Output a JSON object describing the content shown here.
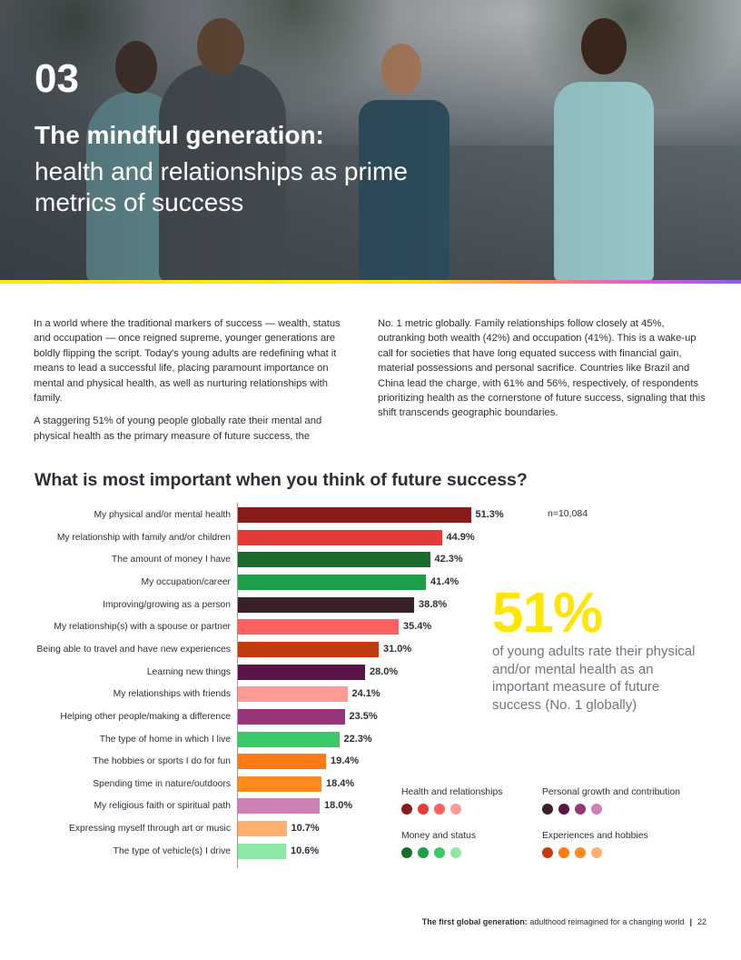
{
  "header": {
    "number": "03",
    "title": "The mindful generation:",
    "subtitle": "health and relationships as prime metrics of success"
  },
  "body": {
    "left_paragraphs": [
      "In a world where the traditional markers of success — wealth, status and occupation — once reigned supreme, younger generations are boldly flipping the script. Today's young adults are redefining what it means to lead a successful life, placing paramount importance on mental and physical health, as well as nurturing relationships with family.",
      "A staggering 51% of young people globally rate their mental and physical health as the primary measure of future success, the"
    ],
    "right_paragraphs": [
      "No. 1 metric globally. Family relationships follow closely at 45%, outranking both wealth (42%) and occupation (41%). This is a wake-up call for societies that have long equated success with financial gain, material possessions and personal sacrifice. Countries like Brazil and China lead the charge, with 61% and 56%, respectively, of respondents prioritizing health as the cornerstone of future success, signaling that this shift transcends geographic boundaries."
    ]
  },
  "chart_data": {
    "type": "bar",
    "orientation": "horizontal",
    "title": "What is most important when you think of future success?",
    "sample": "n=10,084",
    "xlim": [
      0,
      100
    ],
    "categories": [
      "My physical and/or mental health",
      "My relationship with family and/or children",
      "The amount of money I have",
      "My occupation/career",
      "Improving/growing as a person",
      "My relationship(s) with a spouse or partner",
      "Being able to travel and have new experiences",
      "Learning new things",
      "My relationships with friends",
      "Helping other people/making a difference",
      "The type of home in which I live",
      "The hobbies or sports I do for fun",
      "Spending time in nature/outdoors",
      "My religious faith or spiritual path",
      "Expressing myself through art or music",
      "The type of vehicle(s) I drive"
    ],
    "values": [
      51.3,
      44.9,
      42.3,
      41.4,
      38.8,
      35.4,
      31.0,
      28.0,
      24.1,
      23.5,
      22.3,
      19.4,
      18.4,
      18.0,
      10.7,
      10.6
    ],
    "value_labels": [
      "51.3%",
      "44.9%",
      "42.3%",
      "41.4%",
      "38.8%",
      "35.4%",
      "31.0%",
      "28.0%",
      "24.1%",
      "23.5%",
      "22.3%",
      "19.4%",
      "18.4%",
      "18.0%",
      "10.7%",
      "10.6%"
    ],
    "bar_colors": [
      "#8b1a1a",
      "#e53a35",
      "#1b6b31",
      "#1f9e48",
      "#3a2128",
      "#ff6161",
      "#c23b0f",
      "#5a1546",
      "#ff9b96",
      "#96357a",
      "#3cc96a",
      "#ff7a12",
      "#ff8a1f",
      "#cc80b4",
      "#ffb070",
      "#8de8a6"
    ],
    "legend": [
      {
        "name": "Health and relationships",
        "colors": [
          "#8b1a1a",
          "#e53a35",
          "#ff6161",
          "#ff9b96"
        ]
      },
      {
        "name": "Personal growth and contribution",
        "colors": [
          "#3a2128",
          "#5a1546",
          "#96357a",
          "#cc80b4"
        ]
      },
      {
        "name": "Money and status",
        "colors": [
          "#1b6b31",
          "#1f9e48",
          "#3cc96a",
          "#8de8a6"
        ]
      },
      {
        "name": "Experiences and hobbies",
        "colors": [
          "#c23b0f",
          "#ff7a12",
          "#ff8a1f",
          "#ffb070"
        ]
      }
    ]
  },
  "callout": {
    "stat": "51%",
    "text": "of young adults rate their physical and/or mental health as an important measure of future success (No. 1 globally)"
  },
  "footer": {
    "bold": "The first global generation:",
    "rest": "adulthood reimagined for a changing world",
    "page": "22"
  }
}
